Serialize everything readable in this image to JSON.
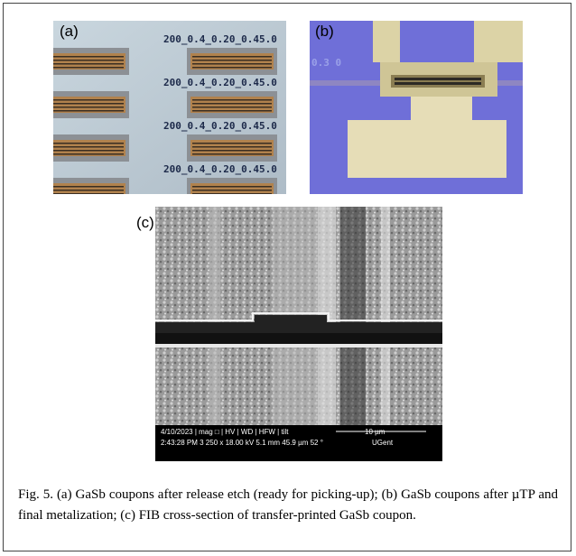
{
  "figure": {
    "panels": [
      {
        "label": "(a)",
        "overlay": [
          "200_0.4_0.20_0.45.0",
          "200_0.4_0.20_0.45.0",
          "200_0.4_0.20_0.45.0",
          "200_0.4_0.20_0.45.0"
        ]
      },
      {
        "label": "(b)",
        "overlay": [
          "0.3 0"
        ]
      },
      {
        "label": "(c)",
        "overlay": [
          "4/10/2023 | mag □ | HV | WD | HFW | tilt",
          "10 µm",
          "2:43:28 PM 3 250 x 18.00 kV 5.1 mm 45.9 µm 52 °",
          "UGent"
        ]
      }
    ],
    "caption": "Fig. 5.  (a) GaSb coupons after release etch (ready for picking-up); (b) GaSb coupons after µTP and final metalization; (c) FIB cross-section of transfer-printed GaSb coupon."
  }
}
